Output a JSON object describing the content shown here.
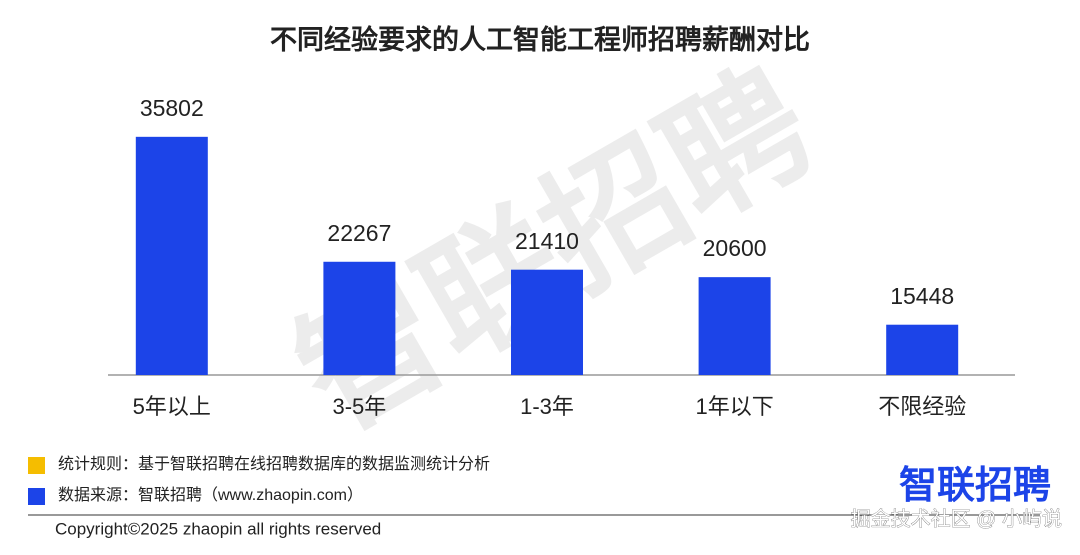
{
  "chart_data": {
    "type": "bar",
    "title": "不同经验要求的人工智能工程师招聘薪酬对比",
    "categories": [
      "5年以上",
      "3-5年",
      "1-3年",
      "1年以下",
      "不限经验"
    ],
    "values": [
      35802,
      22267,
      21410,
      20600,
      15448
    ],
    "color": "#1c44e8",
    "ylim": [
      10000,
      36000
    ]
  },
  "watermark": "智联招聘",
  "footnotes": [
    {
      "text": "统计规则：基于智联招聘在线招聘数据库的数据监测统计分析",
      "color": "#f5bd00"
    },
    {
      "text": "数据来源：智联招聘（www.zhaopin.com）",
      "color": "#1c44e8"
    }
  ],
  "logo": "智联招聘",
  "copyright": "Copyright©2025 zhaopin all rights reserved",
  "credit": "掘金技术社区 @ 小屿说"
}
